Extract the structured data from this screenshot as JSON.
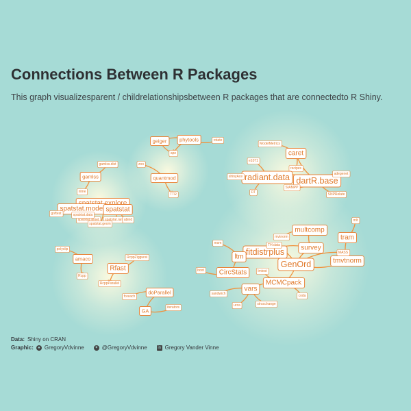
{
  "header": {
    "title": "Connections Between R Packages",
    "subtitle": "This graph visualizesparent / childrelationshipsbetween R packages that are connectedto R Shiny."
  },
  "caption": {
    "data_label": "Data:",
    "data_source": "Shiny on CRAN",
    "graphic_label": "Graphic:",
    "github_handle": "GregoryVdvinne",
    "twitter_handle": "@GregoryVdvinne",
    "linkedin_name": "Gregory Vander Vinne",
    "icons": [
      "github-icon",
      "twitter-icon",
      "linkedin-icon"
    ]
  },
  "colors": {
    "background": "#a6dbd6",
    "edge": "#f0923c",
    "node_fill": "#ffffff",
    "node_border": "#e8853a",
    "node_text": "#e07a2c",
    "glow": "#fffbe0"
  },
  "graph": {
    "nodes": [
      {
        "id": "geiger",
        "label": "geiger",
        "size": "s"
      },
      {
        "id": "phytools",
        "label": "phytools",
        "size": "s"
      },
      {
        "id": "n_top_right",
        "label": "rotate",
        "size": "xs"
      },
      {
        "id": "n_top_mid",
        "label": "ape",
        "size": "xs"
      },
      {
        "id": "quantmod",
        "label": "quantmod",
        "size": "s"
      },
      {
        "id": "n_quant_left",
        "label": "zoo",
        "size": "xs"
      },
      {
        "id": "n_quant_bottom",
        "label": "TTR",
        "size": "xs"
      },
      {
        "id": "gamlss",
        "label": "gamlss",
        "size": "s"
      },
      {
        "id": "gamlss_dist",
        "label": "gamlss.dist",
        "size": "xs"
      },
      {
        "id": "n_gam_below",
        "label": "nlme",
        "size": "xs"
      },
      {
        "id": "spatstat_explore",
        "label": "spatstat.explore",
        "size": "m"
      },
      {
        "id": "spatstat_model",
        "label": "spatstat.model",
        "size": "m"
      },
      {
        "id": "spatstat",
        "label": "spatstat",
        "size": "m"
      },
      {
        "id": "n_sp_left",
        "label": "goftest",
        "size": "xs"
      },
      {
        "id": "spatstat_linnet",
        "label": "spatstat.linnet",
        "size": "xs"
      },
      {
        "id": "spatstat_random",
        "label": "spatstat.random",
        "size": "xs"
      },
      {
        "id": "spatstat_geom",
        "label": "spatstat.geom",
        "size": "xs"
      },
      {
        "id": "n_sp_right",
        "label": "abind",
        "size": "xs"
      },
      {
        "id": "n_sp_mid",
        "label": "spatstat.data",
        "size": "xs"
      },
      {
        "id": "n_caret_top",
        "label": "ModelMetrics",
        "size": "xs"
      },
      {
        "id": "caret",
        "label": "caret",
        "size": "m"
      },
      {
        "id": "n_caret_left",
        "label": "e1071",
        "size": "xs"
      },
      {
        "id": "n_caret_mid",
        "label": "recipes",
        "size": "xs"
      },
      {
        "id": "radiant_data",
        "label": "radiant.data",
        "size": "l"
      },
      {
        "id": "dartR_base",
        "label": "dartR.base",
        "size": "l"
      },
      {
        "id": "n_rad_left",
        "label": "shinyAce",
        "size": "xs"
      },
      {
        "id": "n_rad_bottom",
        "label": "DT",
        "size": "xs"
      },
      {
        "id": "n_dart_right",
        "label": "adegenet",
        "size": "xs"
      },
      {
        "id": "n_dart_right2",
        "label": "SNPRelate",
        "size": "xs"
      },
      {
        "id": "n_dart_mid",
        "label": "StAMPP",
        "size": "xs"
      },
      {
        "id": "multcomp",
        "label": "multcomp",
        "size": "m"
      },
      {
        "id": "fitdistrplus",
        "label": "fitdistrplus",
        "size": "l"
      },
      {
        "id": "ltm",
        "label": "ltm",
        "size": "m"
      },
      {
        "id": "survey",
        "label": "survey",
        "size": "m"
      },
      {
        "id": "GenOrd",
        "label": "GenOrd",
        "size": "l"
      },
      {
        "id": "tram",
        "label": "tram",
        "size": "m"
      },
      {
        "id": "tmvtnorm",
        "label": "tmvtnorm",
        "size": "m"
      },
      {
        "id": "CircStats",
        "label": "CircStats",
        "size": "m"
      },
      {
        "id": "MCMCpack",
        "label": "MCMCpack",
        "size": "m"
      },
      {
        "id": "vars",
        "label": "vars",
        "size": "m"
      },
      {
        "id": "n_m_left",
        "label": "msm",
        "size": "xs"
      },
      {
        "id": "n_m_top",
        "label": "mvtnorm",
        "size": "xs"
      },
      {
        "id": "n_m_mid",
        "label": "TH.data",
        "size": "xs"
      },
      {
        "id": "n_m_right_top",
        "label": "mlt",
        "size": "xs"
      },
      {
        "id": "n_m_right",
        "label": "MASS",
        "size": "xs"
      },
      {
        "id": "n_circ_left",
        "label": "boot",
        "size": "xs"
      },
      {
        "id": "n_circ_mid",
        "label": "lmtest",
        "size": "xs"
      },
      {
        "id": "n_vars_left",
        "label": "sandwich",
        "size": "xs"
      },
      {
        "id": "n_vars_bottom",
        "label": "urca",
        "size": "xs"
      },
      {
        "id": "n_vars_right",
        "label": "strucchange",
        "size": "xs"
      },
      {
        "id": "n_mcmc_right",
        "label": "coda",
        "size": "xs"
      },
      {
        "id": "n_rfast_top",
        "label": "polyclip",
        "size": "xs"
      },
      {
        "id": "amaco",
        "label": "amaco",
        "size": "s"
      },
      {
        "id": "n_amaco_bottom",
        "label": "Rcpp",
        "size": "xs"
      },
      {
        "id": "Rfast",
        "label": "Rfast",
        "size": "m"
      },
      {
        "id": "n_rfast_tr",
        "label": "RcppZiggurat",
        "size": "xs"
      },
      {
        "id": "n_rfast_bottom",
        "label": "RcppParallel",
        "size": "xs"
      },
      {
        "id": "doParallel",
        "label": "doParallel",
        "size": "s"
      },
      {
        "id": "n_ga_left",
        "label": "foreach",
        "size": "xs"
      },
      {
        "id": "GA",
        "label": "GA",
        "size": "s"
      },
      {
        "id": "n_ga_right",
        "label": "iterators",
        "size": "xs"
      }
    ],
    "edges": [
      [
        "geiger",
        "phytools"
      ],
      [
        "phytools",
        "n_top_right"
      ],
      [
        "n_top_mid",
        "geiger"
      ],
      [
        "phytools",
        "n_top_mid"
      ],
      [
        "n_quant_left",
        "quantmod"
      ],
      [
        "quantmod",
        "n_quant_bottom"
      ],
      [
        "gamlss_dist",
        "gamlss"
      ],
      [
        "n_gam_below",
        "gamlss"
      ],
      [
        "spatstat_explore",
        "spatstat_model"
      ],
      [
        "spatstat_model",
        "spatstat"
      ],
      [
        "n_sp_left",
        "spatstat_model"
      ],
      [
        "spatstat_linnet",
        "spatstat_model"
      ],
      [
        "spatstat_random",
        "spatstat"
      ],
      [
        "spatstat_geom",
        "spatstat_explore"
      ],
      [
        "n_sp_right",
        "spatstat"
      ],
      [
        "n_sp_mid",
        "spatstat_geom"
      ],
      [
        "n_caret_top",
        "caret"
      ],
      [
        "n_caret_mid",
        "caret"
      ],
      [
        "n_caret_left",
        "radiant_data"
      ],
      [
        "caret",
        "dartR_base"
      ],
      [
        "radiant_data",
        "dartR_base"
      ],
      [
        "n_rad_left",
        "radiant_data"
      ],
      [
        "n_rad_bottom",
        "radiant_data"
      ],
      [
        "n_dart_right",
        "dartR_base"
      ],
      [
        "n_dart_right2",
        "dartR_base"
      ],
      [
        "n_dart_mid",
        "dartR_base"
      ],
      [
        "n_m_top",
        "multcomp"
      ],
      [
        "multcomp",
        "survey"
      ],
      [
        "n_m_left",
        "ltm"
      ],
      [
        "ltm",
        "fitdistrplus"
      ],
      [
        "fitdistrplus",
        "survey"
      ],
      [
        "survey",
        "GenOrd"
      ],
      [
        "n_m_mid",
        "GenOrd"
      ],
      [
        "tram",
        "tmvtnorm"
      ],
      [
        "n_m_right_top",
        "tram"
      ],
      [
        "n_m_right",
        "GenOrd"
      ],
      [
        "tmvtnorm",
        "GenOrd"
      ],
      [
        "n_circ_left",
        "CircStats"
      ],
      [
        "CircStats",
        "ltm"
      ],
      [
        "n_circ_mid",
        "MCMCpack"
      ],
      [
        "GenOrd",
        "MCMCpack"
      ],
      [
        "MCMCpack",
        "vars"
      ],
      [
        "n_vars_left",
        "vars"
      ],
      [
        "n_vars_bottom",
        "vars"
      ],
      [
        "n_vars_right",
        "vars"
      ],
      [
        "n_mcmc_right",
        "MCMCpack"
      ],
      [
        "n_rfast_top",
        "amaco"
      ],
      [
        "amaco",
        "n_amaco_bottom"
      ],
      [
        "n_rfast_tr",
        "Rfast"
      ],
      [
        "Rfast",
        "n_rfast_bottom"
      ],
      [
        "n_ga_left",
        "doParallel"
      ],
      [
        "doParallel",
        "GA"
      ],
      [
        "n_ga_right",
        "GA"
      ]
    ]
  }
}
